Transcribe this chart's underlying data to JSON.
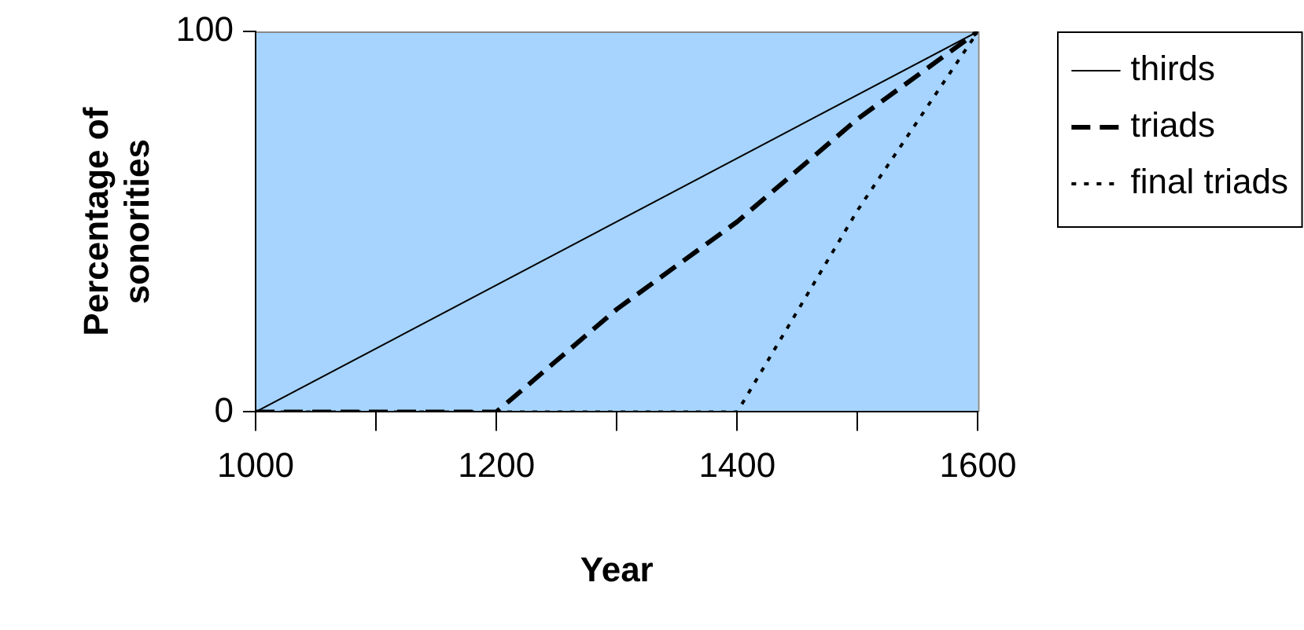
{
  "chart_data": {
    "type": "line",
    "xlabel": "Year",
    "ylabel": "Percentage of sonorities",
    "xlim": [
      1000,
      1600
    ],
    "xticks": [
      1000,
      {
        "value": 1100,
        "label": null
      },
      1200,
      {
        "value": 1300,
        "label": null
      },
      1400,
      {
        "value": 1500,
        "label": null
      },
      1600
    ],
    "ylim": [
      0,
      100
    ],
    "yticks": [
      0,
      100
    ],
    "grid": false,
    "legend": "right",
    "marker": "none",
    "series": [
      {
        "name": "thirds",
        "color": "#000000",
        "line_style": "solid",
        "x": [
          1000,
          1600
        ],
        "values": [
          0,
          100
        ]
      },
      {
        "name": "triads",
        "color": "#000000",
        "line_style": "dashed",
        "x": [
          1000,
          1200,
          1300,
          1400,
          1500,
          1600
        ],
        "values": [
          0,
          0,
          27,
          50,
          77,
          100
        ]
      },
      {
        "name": "final triads",
        "color": "#000000",
        "line_style": "dotted",
        "x": [
          1000,
          1400,
          1500,
          1600
        ],
        "values": [
          0,
          0,
          53,
          100
        ]
      }
    ]
  }
}
